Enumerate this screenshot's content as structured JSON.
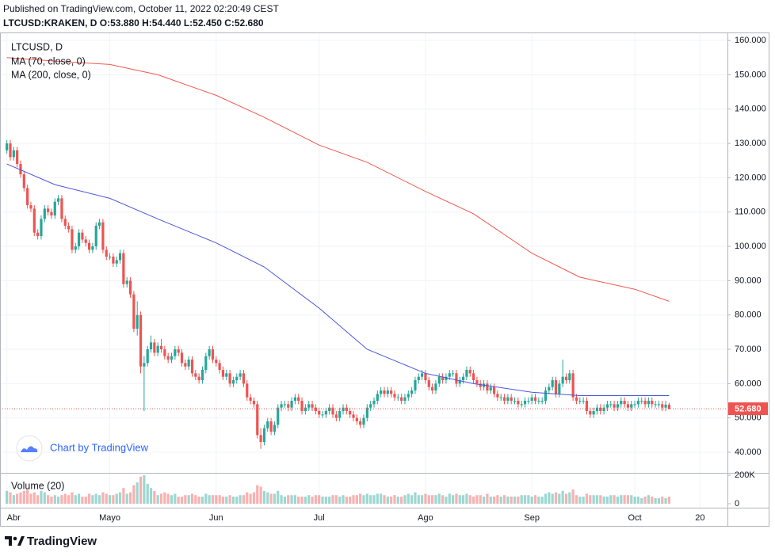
{
  "chart_data": {
    "type": "candlestick",
    "title": "Published on TradingView.com, October 11, 2022 02:20:49 CEST",
    "subtitle": "LTCUSD:KRAKEN, D  O:53.880 H:54.440 L:52.450 C:52.680",
    "symbol_label": "LTCUSD, D",
    "credit": "Chart by TradingView",
    "brand": "TradingView",
    "up_color": "#26a69a",
    "down_color": "#ef5350",
    "grid": true,
    "xlim": [
      -2,
      210
    ],
    "xticks": [
      {
        "value": 0,
        "label": "Abr"
      },
      {
        "value": 30,
        "label": "Mayo"
      },
      {
        "value": 61,
        "label": "Jun"
      },
      {
        "value": 91,
        "label": "Jul"
      },
      {
        "value": 122,
        "label": "Ago"
      },
      {
        "value": 153,
        "label": "Sep"
      },
      {
        "value": 183,
        "label": "Oct"
      },
      {
        "value": 202,
        "label": "20"
      }
    ],
    "ylim": [
      34,
      162.1
    ],
    "yticks": [
      {
        "value": 40,
        "label": "40.000"
      },
      {
        "value": 50,
        "label": "50.000"
      },
      {
        "value": 60,
        "label": "60.000"
      },
      {
        "value": 70,
        "label": "70.000"
      },
      {
        "value": 80,
        "label": "80.000"
      },
      {
        "value": 90,
        "label": "90.000"
      },
      {
        "value": 100,
        "label": "100.000"
      },
      {
        "value": 110,
        "label": "110.000"
      },
      {
        "value": 120,
        "label": "120.000"
      },
      {
        "value": 130,
        "label": "130.000"
      },
      {
        "value": 140,
        "label": "140.000"
      },
      {
        "value": 150,
        "label": "150.000"
      },
      {
        "value": 160,
        "label": "160.000"
      }
    ],
    "open": [
      128,
      130,
      126,
      128,
      124,
      121,
      117,
      112,
      111,
      104,
      103,
      108,
      111,
      110,
      109,
      113,
      114,
      108,
      106,
      105,
      99,
      100,
      104,
      102,
      101,
      99,
      100,
      106,
      107,
      99,
      97,
      97,
      95,
      96,
      98,
      89,
      90,
      86,
      76,
      80,
      65,
      66,
      70,
      72,
      69,
      71,
      70,
      68,
      67,
      68,
      70,
      69,
      66,
      65,
      67,
      63,
      62,
      61,
      64,
      68,
      70,
      67,
      66,
      64,
      62,
      63,
      60,
      61,
      62,
      63,
      60,
      56,
      55,
      54,
      45,
      43,
      47,
      49,
      46,
      48,
      53,
      54,
      54,
      53,
      55,
      56,
      55,
      52,
      53,
      54,
      53,
      52,
      51,
      51,
      52,
      53,
      51,
      50,
      52,
      53,
      52,
      51,
      50,
      49,
      48,
      50,
      53,
      54,
      55,
      57,
      58,
      57,
      58,
      57,
      56,
      56,
      55,
      56,
      57,
      58,
      61,
      62,
      63,
      61,
      59,
      58,
      60,
      62,
      61,
      62,
      63,
      63,
      60,
      61,
      62,
      64,
      63,
      61,
      60,
      59,
      60,
      58,
      59,
      57,
      56,
      56,
      55,
      56,
      55,
      55,
      54,
      54,
      55,
      55,
      56,
      55,
      55,
      55,
      58,
      59,
      61,
      57,
      60,
      62,
      61,
      63,
      56,
      55,
      55,
      55,
      52,
      51,
      52,
      53,
      52,
      53,
      54,
      54,
      53,
      54,
      55,
      54,
      53,
      54,
      54,
      55,
      55,
      54,
      55,
      54,
      54,
      54,
      53,
      53.88
    ],
    "high": [
      131,
      131,
      129,
      129,
      125,
      122,
      118,
      113,
      112,
      105,
      109,
      112,
      112,
      111,
      114,
      115,
      115,
      109,
      107,
      106,
      101,
      105,
      105,
      103,
      102,
      101,
      107,
      108,
      108,
      100,
      98,
      98,
      97,
      99,
      99,
      91,
      91,
      87,
      84,
      81,
      68,
      71,
      74,
      73,
      72,
      73,
      71,
      69,
      69,
      71,
      71,
      70,
      67,
      68,
      68,
      64,
      63,
      65,
      69,
      71,
      71,
      68,
      67,
      65,
      64,
      64,
      62,
      63,
      64,
      64,
      61,
      57,
      56,
      55,
      47,
      48,
      50,
      50,
      49,
      54,
      55,
      55,
      55,
      56,
      57,
      57,
      56,
      54,
      55,
      55,
      54,
      53,
      52,
      53,
      54,
      54,
      52,
      53,
      54,
      54,
      53,
      52,
      51,
      50,
      51,
      54,
      55,
      56,
      58,
      59,
      59,
      59,
      59,
      58,
      57,
      57,
      57,
      58,
      59,
      62,
      63,
      64,
      64,
      62,
      60,
      61,
      63,
      63,
      63,
      64,
      64,
      64,
      62,
      63,
      65,
      65,
      64,
      62,
      61,
      61,
      61,
      60,
      60,
      58,
      57,
      57,
      57,
      57,
      56,
      56,
      55,
      56,
      56,
      57,
      57,
      56,
      56,
      59,
      60,
      62,
      62,
      61,
      67,
      63,
      64,
      64,
      57,
      56,
      56,
      56,
      53,
      53,
      54,
      54,
      54,
      55,
      55,
      55,
      55,
      56,
      56,
      55,
      55,
      55,
      56,
      56,
      56,
      56,
      56,
      55,
      55,
      55,
      55,
      54.44
    ],
    "low": [
      127,
      125,
      125,
      123,
      120,
      116,
      111,
      110,
      103,
      102,
      102,
      107,
      109,
      108,
      108,
      112,
      107,
      105,
      104,
      98,
      98,
      99,
      101,
      100,
      98,
      98,
      99,
      105,
      98,
      96,
      96,
      94,
      94,
      95,
      88,
      88,
      85,
      75,
      74,
      63,
      52,
      65,
      69,
      68,
      68,
      69,
      67,
      66,
      66,
      67,
      68,
      65,
      64,
      64,
      62,
      61,
      60,
      60,
      63,
      67,
      66,
      65,
      63,
      61,
      61,
      59,
      59,
      60,
      61,
      59,
      55,
      54,
      53,
      44,
      41,
      42,
      46,
      45,
      45,
      47,
      52,
      53,
      52,
      52,
      54,
      54,
      51,
      51,
      52,
      52,
      51,
      50,
      50,
      50,
      51,
      50,
      49,
      49,
      51,
      51,
      50,
      49,
      48,
      47,
      47,
      49,
      52,
      53,
      54,
      56,
      56,
      56,
      56,
      55,
      55,
      54,
      54,
      55,
      56,
      57,
      60,
      61,
      60,
      58,
      57,
      57,
      59,
      60,
      60,
      61,
      62,
      59,
      59,
      60,
      61,
      62,
      60,
      59,
      58,
      58,
      57,
      57,
      56,
      55,
      55,
      54,
      54,
      54,
      54,
      53,
      53,
      53,
      54,
      54,
      54,
      54,
      54,
      54,
      57,
      58,
      56,
      56,
      59,
      60,
      60,
      55,
      54,
      54,
      54,
      51,
      50,
      50,
      51,
      51,
      51,
      52,
      53,
      52,
      52,
      53,
      53,
      52,
      52,
      53,
      53,
      54,
      53,
      53,
      53,
      53,
      53,
      52,
      52,
      52.45
    ],
    "close": [
      130,
      126,
      128,
      124,
      121,
      117,
      112,
      111,
      104,
      103,
      108,
      111,
      110,
      109,
      113,
      114,
      108,
      106,
      105,
      99,
      100,
      104,
      102,
      101,
      99,
      100,
      106,
      107,
      99,
      97,
      97,
      95,
      96,
      98,
      89,
      90,
      86,
      76,
      80,
      65,
      66,
      70,
      72,
      69,
      71,
      70,
      68,
      67,
      68,
      70,
      69,
      66,
      65,
      67,
      63,
      62,
      61,
      64,
      68,
      70,
      67,
      66,
      64,
      62,
      63,
      60,
      61,
      62,
      63,
      60,
      56,
      55,
      54,
      45,
      43,
      47,
      49,
      46,
      48,
      53,
      54,
      54,
      53,
      55,
      56,
      55,
      52,
      53,
      54,
      53,
      52,
      51,
      51,
      52,
      53,
      51,
      50,
      52,
      53,
      52,
      51,
      50,
      49,
      48,
      50,
      53,
      54,
      55,
      57,
      58,
      57,
      58,
      57,
      56,
      56,
      55,
      56,
      57,
      58,
      61,
      62,
      63,
      61,
      59,
      58,
      60,
      62,
      61,
      62,
      63,
      63,
      60,
      61,
      62,
      64,
      63,
      61,
      60,
      59,
      60,
      58,
      59,
      57,
      56,
      56,
      55,
      56,
      55,
      55,
      54,
      54,
      55,
      55,
      56,
      55,
      55,
      55,
      58,
      59,
      61,
      57,
      60,
      62,
      61,
      63,
      56,
      55,
      55,
      55,
      52,
      51,
      52,
      53,
      52,
      53,
      54,
      54,
      53,
      54,
      55,
      54,
      53,
      54,
      54,
      55,
      55,
      54,
      55,
      54,
      54,
      54,
      53,
      53.88,
      52.68
    ],
    "series": [
      {
        "name": "MA (70, close, 0)",
        "color": "#4a56d8",
        "x": [
          0,
          14,
          30,
          44,
          61,
          75,
          91,
          105,
          122,
          136,
          153,
          167,
          183,
          193
        ],
        "values": [
          124,
          118,
          114,
          108,
          101,
          94,
          82,
          70,
          63,
          60,
          57.5,
          56.5,
          56.5,
          56.5
        ]
      },
      {
        "name": "MA (200, close, 0)",
        "color": "#f0574e",
        "x": [
          0,
          14,
          30,
          44,
          61,
          75,
          91,
          105,
          122,
          136,
          153,
          167,
          183,
          193
        ],
        "values": [
          155,
          154,
          153,
          150,
          144,
          137.6,
          129.5,
          124.5,
          116,
          109.5,
          98,
          91,
          87.5,
          84
        ]
      }
    ],
    "last_price": {
      "value": 52.68,
      "label": "52.680"
    },
    "volume": {
      "name": "Volume (20)",
      "ylim": [
        0,
        200000
      ],
      "yticks": [
        0,
        {
          "value": 200000,
          "label": "200K"
        }
      ],
      "values": [
        90000,
        80000,
        60000,
        70000,
        80000,
        90000,
        100000,
        70000,
        80000,
        60000,
        90000,
        80000,
        60000,
        50000,
        60000,
        50000,
        60000,
        70000,
        60000,
        80000,
        60000,
        70000,
        50000,
        50000,
        70000,
        60000,
        70000,
        60000,
        80000,
        70000,
        60000,
        60000,
        70000,
        80000,
        110000,
        70000,
        80000,
        130000,
        150000,
        190000,
        200000,
        140000,
        110000,
        90000,
        60000,
        70000,
        80000,
        70000,
        60000,
        70000,
        50000,
        50000,
        60000,
        60000,
        70000,
        60000,
        50000,
        50000,
        70000,
        60000,
        60000,
        60000,
        60000,
        50000,
        50000,
        60000,
        50000,
        50000,
        60000,
        60000,
        80000,
        70000,
        80000,
        130000,
        120000,
        90000,
        80000,
        70000,
        70000,
        90000,
        60000,
        50000,
        60000,
        60000,
        60000,
        50000,
        50000,
        50000,
        60000,
        50000,
        60000,
        60000,
        50000,
        50000,
        50000,
        60000,
        60000,
        50000,
        60000,
        50000,
        50000,
        60000,
        60000,
        70000,
        60000,
        70000,
        60000,
        60000,
        70000,
        70000,
        60000,
        50000,
        50000,
        60000,
        50000,
        50000,
        60000,
        70000,
        60000,
        80000,
        60000,
        60000,
        70000,
        60000,
        60000,
        60000,
        70000,
        60000,
        50000,
        70000,
        60000,
        70000,
        60000,
        60000,
        70000,
        60000,
        50000,
        60000,
        60000,
        50000,
        70000,
        50000,
        50000,
        60000,
        50000,
        60000,
        50000,
        50000,
        50000,
        50000,
        60000,
        60000,
        60000,
        50000,
        60000,
        50000,
        50000,
        70000,
        80000,
        70000,
        80000,
        70000,
        90000,
        70000,
        80000,
        100000,
        60000,
        50000,
        50000,
        70000,
        60000,
        60000,
        60000,
        60000,
        50000,
        50000,
        60000,
        60000,
        50000,
        60000,
        60000,
        60000,
        60000,
        50000,
        50000,
        40000,
        50000,
        60000,
        50000,
        40000,
        40000,
        50000,
        40000,
        50000
      ]
    }
  }
}
